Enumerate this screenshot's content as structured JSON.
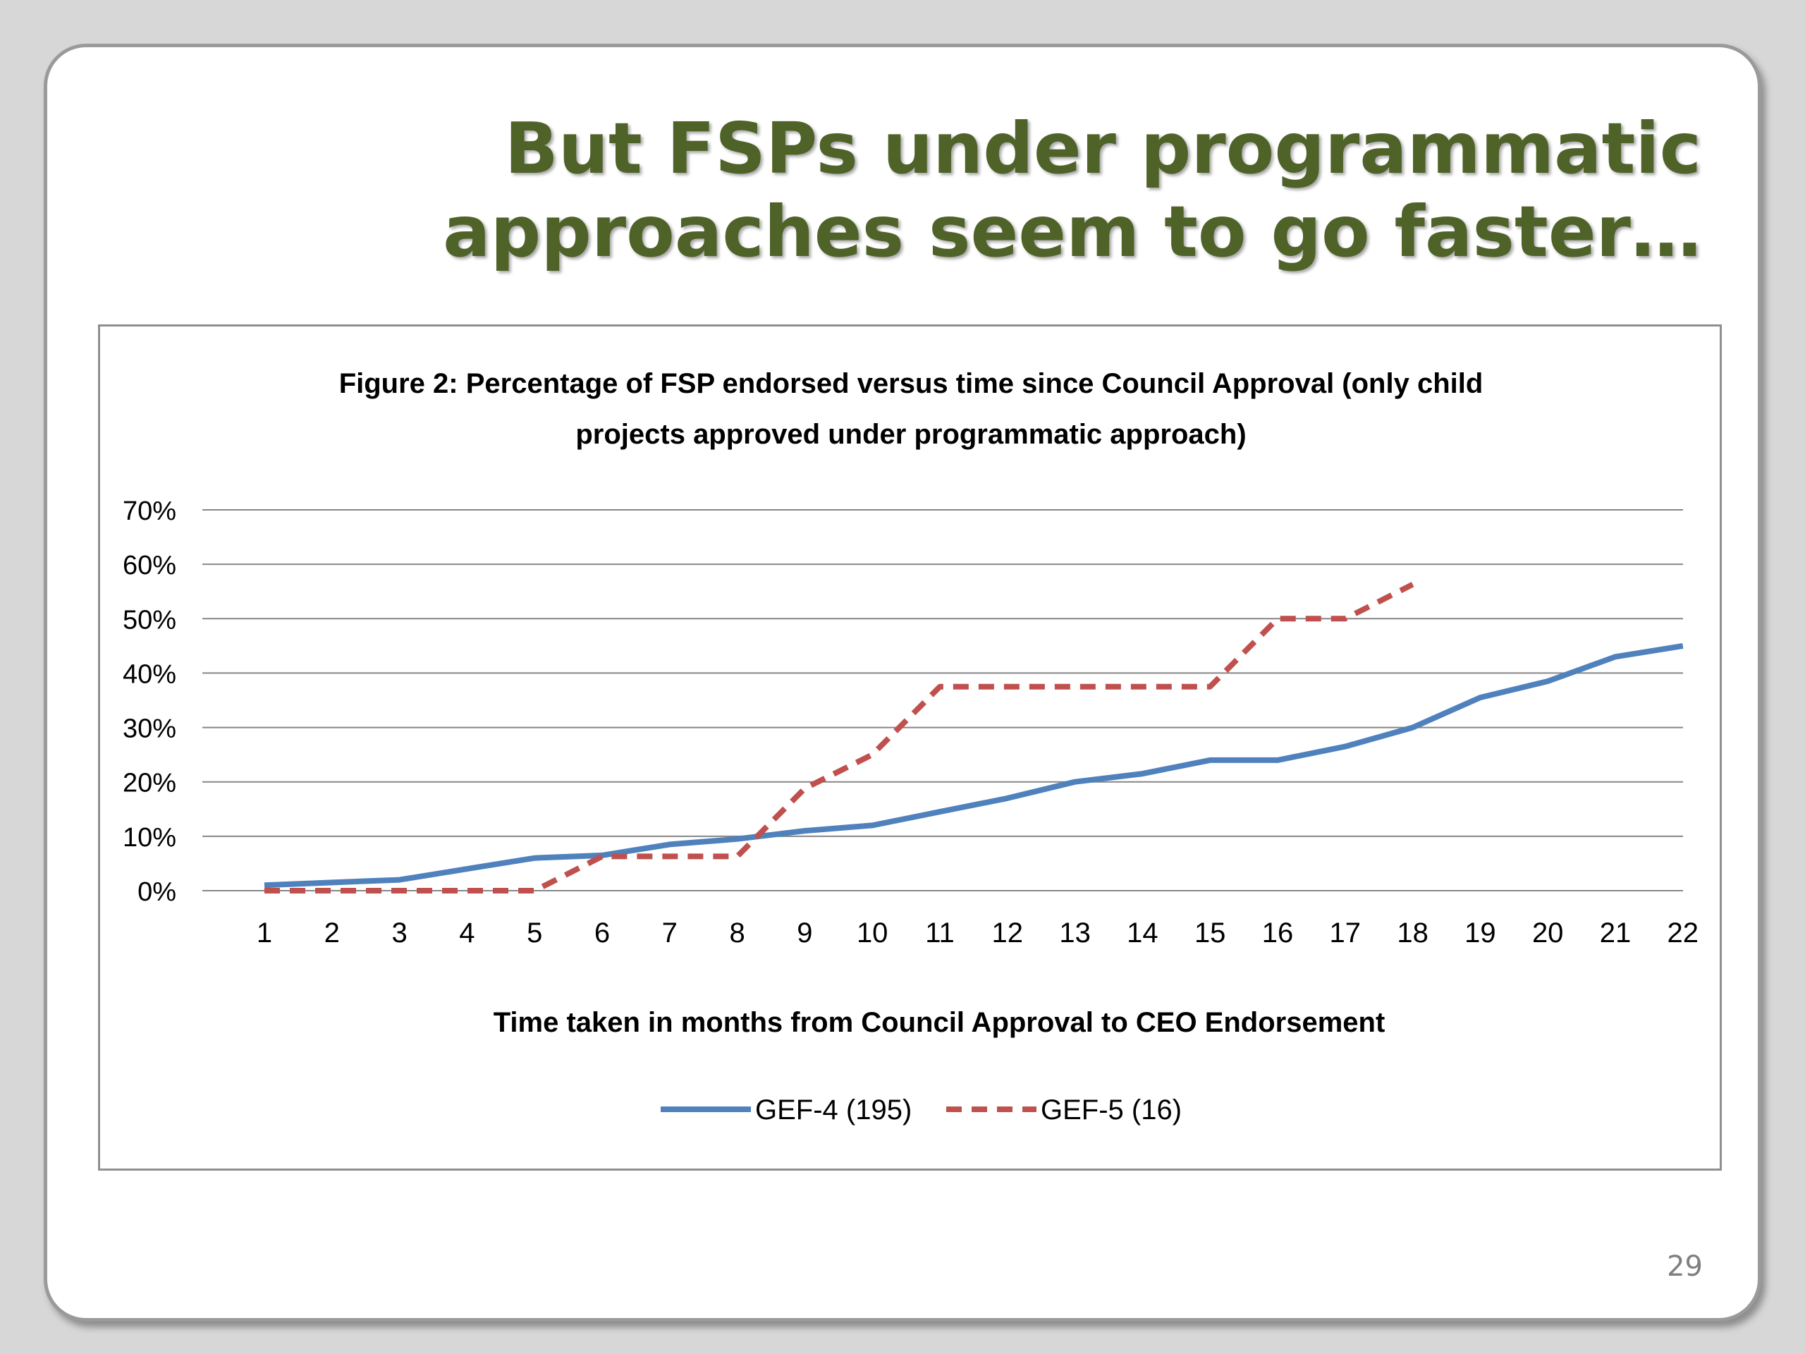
{
  "slide": {
    "title_lines": [
      "But FSPs under programmatic",
      "approaches seem to go faster…"
    ],
    "page_number": "29",
    "title_color": "#4f6228"
  },
  "chart_data": {
    "type": "line",
    "title_lines": [
      "Figure 2: Percentage of FSP endorsed versus time since Council Approval (only child",
      "projects approved under programmatic approach)"
    ],
    "xlabel": "Time taken in months from Council Approval to CEO Endorsement",
    "ylabel": "",
    "categories": [
      "1",
      "2",
      "3",
      "4",
      "5",
      "6",
      "7",
      "8",
      "9",
      "10",
      "11",
      "12",
      "13",
      "14",
      "15",
      "16",
      "17",
      "18",
      "19",
      "20",
      "21",
      "22"
    ],
    "y_ticks": [
      "0%",
      "10%",
      "20%",
      "30%",
      "40%",
      "50%",
      "60%",
      "70%"
    ],
    "ylim": [
      0,
      70
    ],
    "grid": true,
    "legend": "bottom",
    "series": [
      {
        "name": "GEF-4 (195)",
        "color": "#4f81bd",
        "dash": "solid",
        "values": [
          1,
          1.5,
          2,
          4,
          6,
          6.5,
          8.5,
          9.5,
          11,
          12,
          14.5,
          17,
          20,
          21.5,
          24,
          24,
          26.5,
          30,
          35.5,
          38.5,
          43,
          45
        ]
      },
      {
        "name": "GEF-5 (16)",
        "color": "#c0504d",
        "dash": "dashed",
        "values": [
          0,
          0,
          0,
          0,
          0,
          6.3,
          6.3,
          6.3,
          18.8,
          25,
          37.5,
          37.5,
          37.5,
          37.5,
          37.5,
          50,
          50,
          56.3,
          null,
          null,
          null,
          null
        ]
      }
    ]
  }
}
